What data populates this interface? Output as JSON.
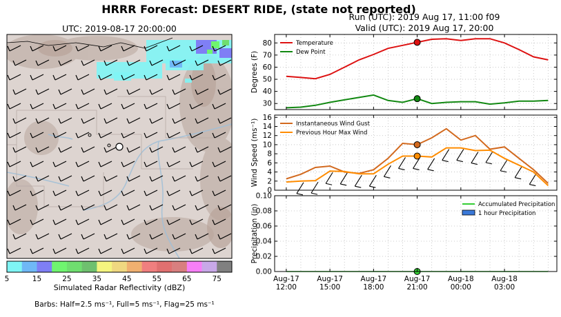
{
  "header": {
    "title": "HRRR Forecast: DESERT RIDE, (state not reported)",
    "run": "Run (UTC): 2019 Aug 17, 11:00 f09",
    "valid": "Valid (UTC): 2019 Aug 17, 20:00"
  },
  "map": {
    "title": "UTC: 2019-08-17 20:00:00",
    "colorbar": {
      "label": "Simulated Radar Reflectivity (dBZ)",
      "ticks": [
        "5",
        "15",
        "25",
        "35",
        "45",
        "55",
        "65",
        "75"
      ],
      "colors": [
        "#7ff5f5",
        "#6fb8f6",
        "#7f7ff5",
        "#6ff56f",
        "#6fde6f",
        "#6fc06f",
        "#f5f57f",
        "#f0d880",
        "#f0b070",
        "#f07f7f",
        "#e07070",
        "#d87f7f",
        "#f77ff7",
        "#c8a8e8",
        "#808080"
      ]
    },
    "barbs_note": "Barbs: Half=2.5 ms⁻¹, Full=5 ms⁻¹, Flag=25 ms⁻¹"
  },
  "chart_data": [
    {
      "type": "line",
      "panel": "temperature",
      "ylabel": "Degrees (F)",
      "ylim": [
        25,
        87
      ],
      "yticks": [
        "30",
        "40",
        "50",
        "60",
        "70",
        "80"
      ],
      "yticks_values": [
        30,
        40,
        50,
        60,
        70,
        80
      ],
      "x_hours": [
        0,
        1,
        2,
        3,
        4,
        5,
        6,
        7,
        8,
        9,
        10,
        11,
        12,
        13,
        14,
        15,
        16,
        17,
        18
      ],
      "grid": true,
      "legend_placement": "top-left",
      "series": [
        {
          "name": "Temperature",
          "color": "#dd1111",
          "values": [
            52.5,
            51.5,
            50.5,
            54,
            60,
            66,
            70.5,
            75.5,
            78,
            80.5,
            83,
            83.5,
            82,
            83.5,
            83.5,
            80,
            74.5,
            68.5,
            66
          ]
        },
        {
          "name": "Dew Point",
          "color": "#118811",
          "values": [
            26.5,
            27,
            28.5,
            31,
            33,
            35,
            37,
            32.5,
            31,
            34,
            30,
            31,
            31.5,
            31.5,
            29.5,
            30.5,
            32,
            32,
            32.5
          ]
        }
      ],
      "marker_hour": 9,
      "marker_values": [
        80.5,
        34
      ]
    },
    {
      "type": "line",
      "panel": "wind",
      "ylabel": "Wind Speed (ms⁻¹)",
      "ylim": [
        0,
        16.5
      ],
      "yticks": [
        "0",
        "2",
        "4",
        "6",
        "8",
        "10",
        "12",
        "14",
        "16"
      ],
      "yticks_values": [
        0,
        2,
        4,
        6,
        8,
        10,
        12,
        14,
        16
      ],
      "x_hours": [
        0,
        1,
        2,
        3,
        4,
        5,
        6,
        7,
        8,
        9,
        10,
        11,
        12,
        13,
        14,
        15,
        16,
        17,
        18
      ],
      "grid": true,
      "legend_placement": "top-left",
      "series": [
        {
          "name": "Instantaneous Wind Gust",
          "color": "#d2691e",
          "values": [
            2.5,
            3.5,
            5,
            5.3,
            4,
            3.7,
            4.5,
            7,
            10.3,
            10,
            11.5,
            13.5,
            11,
            12,
            9,
            9.5,
            7,
            4.5,
            1.5
          ]
        },
        {
          "name": "Previous Hour Max Wind",
          "color": "#ff8c00",
          "values": [
            1.8,
            2,
            2.1,
            4.2,
            4.1,
            3.6,
            3.6,
            5.7,
            7.5,
            7.5,
            7.3,
            9.3,
            9.3,
            8.7,
            8.8,
            7,
            5.5,
            4,
            1
          ]
        }
      ],
      "marker_hour": 9,
      "marker_values": [
        10,
        7.5
      ]
    },
    {
      "type": "line",
      "panel": "precipitation",
      "ylabel": "Precipitation (in)",
      "ylim": [
        0,
        0.1
      ],
      "yticks": [
        "0.00",
        "0.02",
        "0.04",
        "0.06",
        "0.08",
        "0.10"
      ],
      "yticks_values": [
        0,
        0.02,
        0.04,
        0.06,
        0.08,
        0.1
      ],
      "x_hours": [
        0,
        1,
        2,
        3,
        4,
        5,
        6,
        7,
        8,
        9,
        10,
        11,
        12,
        13,
        14,
        15,
        16,
        17,
        18
      ],
      "grid": true,
      "legend_placement": "top-right",
      "series": [
        {
          "name": "Accumulated Precipitation",
          "color": "#33cc33",
          "values": [
            0,
            0,
            0,
            0,
            0,
            0,
            0,
            0,
            0,
            0,
            0,
            0,
            0,
            0,
            0,
            0,
            0,
            0,
            0
          ]
        },
        {
          "name": "1 hour Precipitation",
          "color": "#3a78d8",
          "values": [
            0,
            0,
            0,
            0,
            0,
            0,
            0,
            0,
            0,
            0,
            0,
            0,
            0,
            0,
            0,
            0,
            0,
            0,
            0
          ]
        }
      ],
      "marker_hour": 9,
      "marker_values": [
        0
      ]
    }
  ],
  "x_axis": {
    "hour_range": [
      -0.8,
      18.6
    ],
    "ticks": [
      {
        "hour": 0,
        "day": "Aug-17",
        "time": "12:00"
      },
      {
        "hour": 3,
        "day": "Aug-17",
        "time": "15:00"
      },
      {
        "hour": 6,
        "day": "Aug-17",
        "time": "18:00"
      },
      {
        "hour": 9,
        "day": "Aug-17",
        "time": "21:00"
      },
      {
        "hour": 12,
        "day": "Aug-18",
        "time": "00:00"
      },
      {
        "hour": 15,
        "day": "Aug-18",
        "time": "03:00"
      }
    ]
  }
}
